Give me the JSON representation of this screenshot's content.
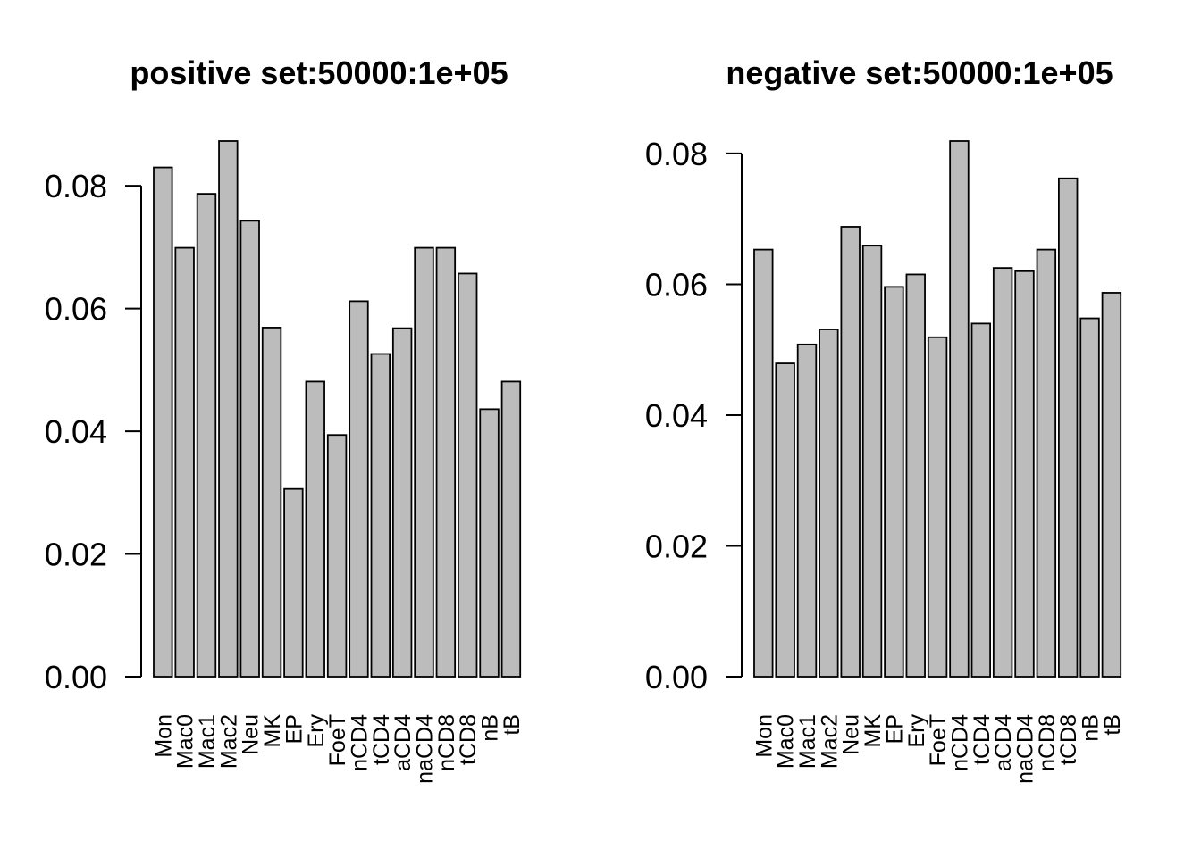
{
  "page": {
    "background": "#ffffff",
    "text_color": "#000000"
  },
  "chart_data": [
    {
      "type": "bar",
      "title": "positive set:50000:1e+05",
      "categories": [
        "Mon",
        "Mac0",
        "Mac1",
        "Mac2",
        "Neu",
        "MK",
        "EP",
        "Ery",
        "FoeT",
        "nCD4",
        "tCD4",
        "aCD4",
        "naCD4",
        "nCD8",
        "tCD8",
        "nB",
        "tB"
      ],
      "values": [
        0.083,
        0.0699,
        0.0787,
        0.0873,
        0.0743,
        0.0569,
        0.0306,
        0.0481,
        0.0394,
        0.0612,
        0.0526,
        0.0568,
        0.0699,
        0.0699,
        0.0657,
        0.0436,
        0.0481
      ],
      "xlabel": "",
      "ylabel": "",
      "ylim": [
        0,
        0.0873
      ],
      "ytick_values": [
        0,
        0.02,
        0.04,
        0.06,
        0.08
      ],
      "ytick_labels": [
        "0.00",
        "0.02",
        "0.04",
        "0.06",
        "0.08"
      ],
      "grid": false,
      "legend": "none",
      "bar_fill": "#bcbcbc",
      "bar_stroke": "#000000",
      "axis_color": "#000000"
    },
    {
      "type": "bar",
      "title": "negative set:50000:1e+05",
      "categories": [
        "Mon",
        "Mac0",
        "Mac1",
        "Mac2",
        "Neu",
        "MK",
        "EP",
        "Ery",
        "FoeT",
        "nCD4",
        "tCD4",
        "aCD4",
        "naCD4",
        "nCD8",
        "tCD8",
        "nB",
        "tB"
      ],
      "values": [
        0.0653,
        0.0479,
        0.0508,
        0.0531,
        0.0688,
        0.0659,
        0.0596,
        0.0615,
        0.0519,
        0.0819,
        0.054,
        0.0625,
        0.062,
        0.0653,
        0.0762,
        0.0548,
        0.0587
      ],
      "xlabel": "",
      "ylabel": "",
      "ylim": [
        0,
        0.0819
      ],
      "ytick_values": [
        0,
        0.02,
        0.04,
        0.06,
        0.08
      ],
      "ytick_labels": [
        "0.00",
        "0.02",
        "0.04",
        "0.06",
        "0.08"
      ],
      "grid": false,
      "legend": "none",
      "bar_fill": "#bcbcbc",
      "bar_stroke": "#000000",
      "axis_color": "#000000"
    }
  ]
}
